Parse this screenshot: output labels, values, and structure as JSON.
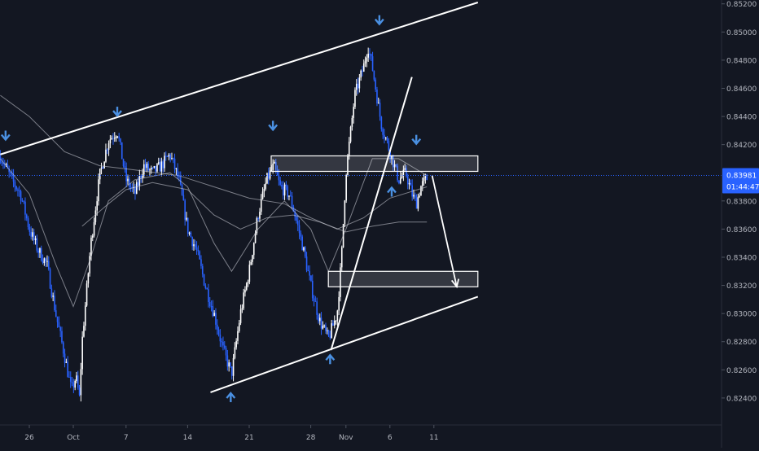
{
  "chart_data": {
    "type": "candlestick",
    "title": "",
    "xlabel": "",
    "ylabel": "",
    "ylim": [
      0.8233,
      0.8521
    ],
    "grid": false,
    "colors": {
      "background": "#131722",
      "bull_candle": "#ffffff",
      "bear_candle": "#2962ff",
      "drawings": "#ffffff",
      "arrow_markers": "#4a90e2",
      "last_price_line": "#2962ff",
      "axis_text": "#b2b5be"
    },
    "y_ticks": [
      "0.85200",
      "0.85000",
      "0.84800",
      "0.84600",
      "0.84400",
      "0.84200",
      "0.83800",
      "0.83600",
      "0.83400",
      "0.83200",
      "0.83000",
      "0.82800",
      "0.82600",
      "0.82400"
    ],
    "x_ticks": [
      {
        "label": "26",
        "day": 0
      },
      {
        "label": "Oct",
        "day": 5
      },
      {
        "label": "7",
        "day": 11
      },
      {
        "label": "14",
        "day": 18
      },
      {
        "label": "21",
        "day": 25
      },
      {
        "label": "28",
        "day": 32
      },
      {
        "label": "Nov",
        "day": 36
      },
      {
        "label": "6",
        "day": 41
      },
      {
        "label": "11",
        "day": 46
      }
    ],
    "last_price": {
      "value": 0.83981,
      "label": "0.83981",
      "countdown": "01:44:47"
    },
    "price_path": [
      [
        -3.3,
        0.8412
      ],
      [
        -2,
        0.8395
      ],
      [
        -1,
        0.8385
      ],
      [
        0,
        0.836
      ],
      [
        1,
        0.8345
      ],
      [
        2,
        0.8335
      ],
      [
        3,
        0.83
      ],
      [
        4,
        0.827
      ],
      [
        4.8,
        0.8245
      ],
      [
        5.3,
        0.8255
      ],
      [
        5.7,
        0.824
      ],
      [
        6,
        0.828
      ],
      [
        7,
        0.835
      ],
      [
        8,
        0.8398
      ],
      [
        9,
        0.8423
      ],
      [
        10,
        0.843
      ],
      [
        11,
        0.8395
      ],
      [
        12,
        0.8385
      ],
      [
        13,
        0.8405
      ],
      [
        14,
        0.84
      ],
      [
        15,
        0.8405
      ],
      [
        16,
        0.8413
      ],
      [
        17,
        0.8395
      ],
      [
        18,
        0.836
      ],
      [
        19,
        0.8345
      ],
      [
        20,
        0.832
      ],
      [
        21,
        0.83
      ],
      [
        22,
        0.8275
      ],
      [
        23,
        0.8257
      ],
      [
        24,
        0.83
      ],
      [
        25,
        0.833
      ],
      [
        26,
        0.837
      ],
      [
        27,
        0.8395
      ],
      [
        27.8,
        0.8405
      ],
      [
        28.5,
        0.839
      ],
      [
        29.5,
        0.8385
      ],
      [
        30,
        0.8375
      ],
      [
        31,
        0.835
      ],
      [
        32,
        0.832
      ],
      [
        33,
        0.8295
      ],
      [
        34,
        0.8282
      ],
      [
        35,
        0.83
      ],
      [
        35.5,
        0.834
      ],
      [
        36,
        0.84
      ],
      [
        37,
        0.8455
      ],
      [
        38,
        0.8475
      ],
      [
        38.5,
        0.849
      ],
      [
        39,
        0.8475
      ],
      [
        39.5,
        0.8455
      ],
      [
        40,
        0.8435
      ],
      [
        41,
        0.8415
      ],
      [
        42,
        0.8395
      ],
      [
        42.8,
        0.84
      ],
      [
        43.5,
        0.8385
      ],
      [
        44,
        0.8378
      ],
      [
        44.5,
        0.839
      ],
      [
        45.2,
        0.8396
      ]
    ],
    "series": [
      {
        "name": "",
        "role": "moving average (fast)",
        "color": "#d1d4dc",
        "points": [
          [
            -3.3,
            0.841
          ],
          [
            0,
            0.8385
          ],
          [
            3,
            0.8335
          ],
          [
            5,
            0.8305
          ],
          [
            7,
            0.834
          ],
          [
            9,
            0.838
          ],
          [
            12,
            0.8395
          ],
          [
            16,
            0.84
          ],
          [
            18,
            0.839
          ],
          [
            21,
            0.835
          ],
          [
            23,
            0.833
          ],
          [
            26,
            0.836
          ],
          [
            29,
            0.838
          ],
          [
            32,
            0.836
          ],
          [
            34,
            0.833
          ],
          [
            36,
            0.836
          ],
          [
            39,
            0.841
          ],
          [
            42,
            0.841
          ],
          [
            45.2,
            0.8398
          ]
        ]
      },
      {
        "name": "",
        "role": "moving average (medium)",
        "color": "#d1d4dc",
        "points": [
          [
            -3.3,
            0.8455
          ],
          [
            0,
            0.844
          ],
          [
            4,
            0.8415
          ],
          [
            8,
            0.8405
          ],
          [
            12,
            0.8402
          ],
          [
            17,
            0.8398
          ],
          [
            21,
            0.839
          ],
          [
            25,
            0.8382
          ],
          [
            29,
            0.8378
          ],
          [
            32,
            0.8368
          ],
          [
            35,
            0.836
          ],
          [
            38,
            0.8368
          ],
          [
            41,
            0.8382
          ],
          [
            45.2,
            0.839
          ]
        ]
      },
      {
        "name": "",
        "role": "moving average (slow)",
        "color": "#d1d4dc",
        "points": [
          [
            6,
            0.8362
          ],
          [
            9,
            0.8378
          ],
          [
            11,
            0.8388
          ],
          [
            14,
            0.8393
          ],
          [
            18,
            0.8388
          ],
          [
            21,
            0.837
          ],
          [
            24,
            0.836
          ],
          [
            27,
            0.8368
          ],
          [
            30,
            0.837
          ],
          [
            33,
            0.8365
          ],
          [
            36,
            0.8358
          ],
          [
            39,
            0.8362
          ],
          [
            42,
            0.8365
          ],
          [
            45.2,
            0.8365
          ]
        ]
      }
    ],
    "drawings": {
      "channel_lines": [
        {
          "from": [
            -3.3,
            0.8413
          ],
          "to": [
            51,
            0.8521
          ]
        },
        {
          "from": [
            20.6,
            0.8244
          ],
          "to": [
            51,
            0.8312
          ]
        }
      ],
      "breakout_line": {
        "from": [
          34.3,
          0.8274
        ],
        "to": [
          43.5,
          0.8468
        ]
      },
      "resistance_zones": [
        {
          "x0": 27.5,
          "x1": 51,
          "y0": 0.8401,
          "y1": 0.8412
        },
        {
          "x0": 34,
          "x1": 51,
          "y0": 0.8319,
          "y1": 0.833
        }
      ],
      "forecast_arrow": [
        [
          45.8,
          0.8398
        ],
        [
          48.6,
          0.8319
        ]
      ],
      "up_arrows": [
        [
          22.9,
          0.8244
        ],
        [
          34.2,
          0.8271
        ],
        [
          41.2,
          0.839
        ]
      ],
      "down_arrows": [
        [
          -2.7,
          0.8423
        ],
        [
          10,
          0.844
        ],
        [
          27.7,
          0.843
        ],
        [
          39.8,
          0.8505
        ],
        [
          44,
          0.842
        ]
      ]
    }
  }
}
